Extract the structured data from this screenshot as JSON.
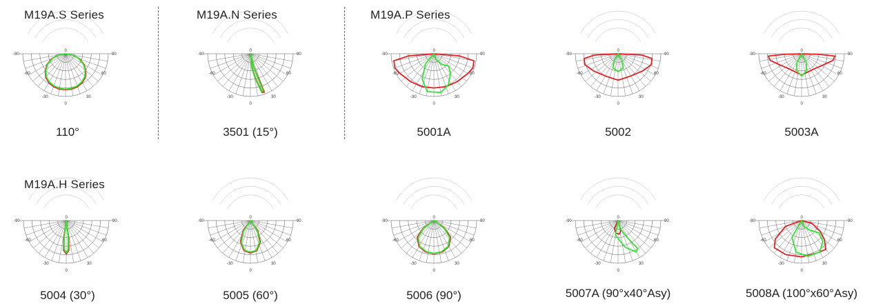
{
  "series": [
    {
      "title": "M19A.S Series"
    },
    {
      "title": "M19A.N Series"
    },
    {
      "title": "M19A.P Series"
    },
    {
      "title": "M19A.H Series"
    }
  ],
  "colors": {
    "red_curve": "#e31e24",
    "green_curve": "#2ee82e",
    "grid": "#555555"
  },
  "angle_labels": [
    "-90",
    "90",
    "-60",
    "60",
    "-30",
    "30",
    "0",
    "0"
  ],
  "diagrams": [
    {
      "caption": "110°"
    },
    {
      "caption": "3501 (15°)"
    },
    {
      "caption": "5001A"
    },
    {
      "caption": "5002"
    },
    {
      "caption": "5003A"
    },
    {
      "caption": "5004 (30°)"
    },
    {
      "caption": "5005 (60°)"
    },
    {
      "caption": "5006 (90°)"
    },
    {
      "caption": "5007A (90°x40°Asy)"
    },
    {
      "caption": "5008A (100°x60°Asy)"
    }
  ]
}
